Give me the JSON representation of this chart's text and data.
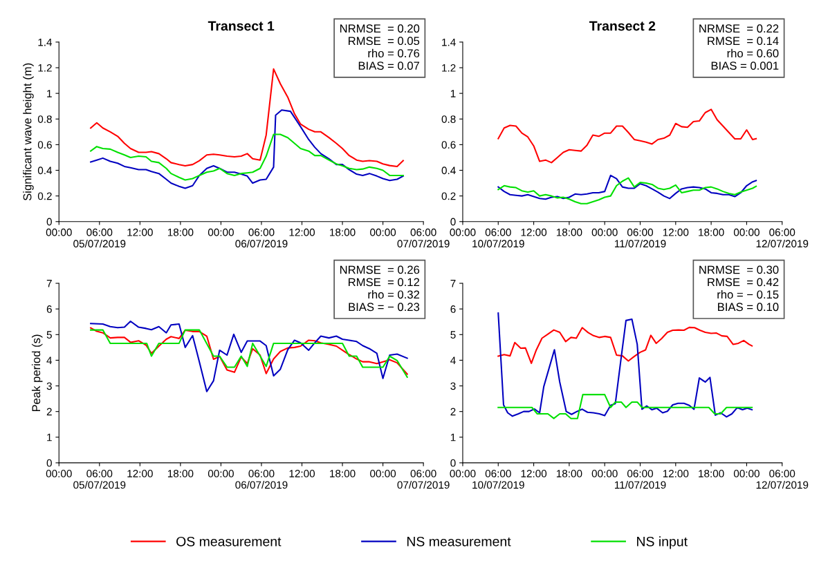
{
  "chart_data": [
    {
      "type": "line",
      "title": "Transect 1",
      "ylabel": "Significant wave height (m)",
      "legend": "bottom",
      "grid": false,
      "x": [
        "2019-07-05T04:42",
        "2019-07-05T05:36",
        "2019-07-05T06:30",
        "2019-07-05T07:36",
        "2019-07-05T08:42",
        "2019-07-05T09:42",
        "2019-07-05T10:36",
        "2019-07-05T11:48",
        "2019-07-05T12:54",
        "2019-07-05T13:42",
        "2019-07-05T14:48",
        "2019-07-05T15:54",
        "2019-07-05T16:36",
        "2019-07-05T17:48",
        "2019-07-05T18:42",
        "2019-07-05T19:48",
        "2019-07-05T20:48",
        "2019-07-05T21:54",
        "2019-07-05T22:54",
        "2019-07-05T23:48",
        "2019-07-06T00:54",
        "2019-07-06T02:00",
        "2019-07-06T03:00",
        "2019-07-06T03:54",
        "2019-07-06T04:42",
        "2019-07-06T05:48",
        "2019-07-06T06:42",
        "2019-07-06T07:48",
        "2019-07-06T08:48",
        "2019-07-06T09:54",
        "2019-07-06T10:54",
        "2019-07-06T11:48",
        "2019-07-06T13:00",
        "2019-07-06T13:54",
        "2019-07-06T14:48",
        "2019-07-06T16:00",
        "2019-07-06T17:06",
        "2019-07-06T18:00",
        "2019-07-06T19:00",
        "2019-07-06T20:06",
        "2019-07-06T21:00",
        "2019-07-06T22:00",
        "2019-07-06T23:06",
        "2019-07-07T00:00",
        "2019-07-07T01:00",
        "2019-07-07T02:06",
        "2019-07-07T03:00"
      ],
      "xlim": [
        "2019-07-05T00:00",
        "2019-07-07T06:00"
      ],
      "xticks": [
        {
          "value": "2019-07-05T00:00",
          "label": "00:00"
        },
        {
          "value": "2019-07-05T06:00",
          "label": "06:00\n05/07/2019"
        },
        {
          "value": "2019-07-05T12:00",
          "label": "12:00"
        },
        {
          "value": "2019-07-05T18:00",
          "label": "18:00"
        },
        {
          "value": "2019-07-06T00:00",
          "label": "00:00"
        },
        {
          "value": "2019-07-06T06:00",
          "label": "06:00\n06/07/2019"
        },
        {
          "value": "2019-07-06T12:00",
          "label": "12:00"
        },
        {
          "value": "2019-07-06T18:00",
          "label": "18:00"
        },
        {
          "value": "2019-07-07T00:00",
          "label": "00:00"
        },
        {
          "value": "2019-07-07T06:00",
          "label": "06:00\n07/07/2019"
        }
      ],
      "ylim": [
        0,
        1.4
      ],
      "yticks": [
        0,
        0.2,
        0.4,
        0.6,
        0.8,
        1,
        1.2,
        1.4
      ],
      "annotations": [
        "NRMSE  = 0.20\nRMSE  = 0.05\nrho = 0.76\nBIAS = 0.07"
      ],
      "series": [
        {
          "name": "OS measurement",
          "color": "#ff0000",
          "values": [
            0.73,
            0.77,
            0.73,
            0.7,
            0.665,
            0.61,
            0.57,
            0.54,
            0.54,
            0.545,
            0.53,
            0.49,
            0.46,
            0.445,
            0.435,
            0.445,
            0.475,
            0.52,
            0.525,
            0.52,
            0.51,
            0.505,
            0.51,
            0.53,
            0.49,
            0.48,
            0.675,
            1.19,
            1.075,
            0.97,
            0.84,
            0.76,
            0.72,
            0.7,
            0.7,
            0.655,
            0.61,
            0.57,
            0.515,
            0.48,
            0.47,
            0.475,
            0.47,
            0.45,
            0.437,
            0.43,
            0.475
          ]
        },
        {
          "name": "NS measurement",
          "color": "#0000c0",
          "x": [
            "2019-07-05T04:42",
            "2019-07-05T05:36",
            "2019-07-05T06:30",
            "2019-07-05T07:36",
            "2019-07-05T08:42",
            "2019-07-05T09:42",
            "2019-07-05T10:36",
            "2019-07-05T11:48",
            "2019-07-05T12:54",
            "2019-07-05T13:42",
            "2019-07-05T14:48",
            "2019-07-05T15:54",
            "2019-07-05T16:36",
            "2019-07-05T17:48",
            "2019-07-05T18:42",
            "2019-07-05T19:48",
            "2019-07-05T20:48",
            "2019-07-05T21:54",
            "2019-07-05T22:54",
            "2019-07-05T23:48",
            "2019-07-06T00:54",
            "2019-07-06T02:00",
            "2019-07-06T03:00",
            "2019-07-06T03:54",
            "2019-07-06T04:42",
            "2019-07-06T05:48",
            "2019-07-06T06:42",
            "2019-07-06T07:48",
            "2019-07-06T08:06",
            "2019-07-06T09:00",
            "2019-07-06T10:18",
            "2019-07-06T11:48",
            "2019-07-06T13:00",
            "2019-07-06T13:54",
            "2019-07-06T14:48",
            "2019-07-06T16:00",
            "2019-07-06T17:06",
            "2019-07-06T18:00",
            "2019-07-06T19:00",
            "2019-07-06T20:06",
            "2019-07-06T21:00",
            "2019-07-06T22:00",
            "2019-07-06T23:06",
            "2019-07-07T00:00",
            "2019-07-07T01:00",
            "2019-07-07T02:06",
            "2019-07-07T03:00"
          ],
          "values": [
            0.465,
            0.48,
            0.495,
            0.47,
            0.455,
            0.43,
            0.42,
            0.405,
            0.405,
            0.39,
            0.375,
            0.33,
            0.3,
            0.275,
            0.26,
            0.28,
            0.36,
            0.415,
            0.435,
            0.415,
            0.385,
            0.385,
            0.37,
            0.355,
            0.3,
            0.325,
            0.33,
            0.425,
            0.83,
            0.87,
            0.86,
            0.74,
            0.64,
            0.58,
            0.53,
            0.49,
            0.445,
            0.445,
            0.405,
            0.37,
            0.36,
            0.375,
            0.355,
            0.335,
            0.32,
            0.33,
            0.355
          ]
        },
        {
          "name": "NS input",
          "color": "#00e000",
          "values": [
            0.55,
            0.585,
            0.57,
            0.565,
            0.54,
            0.52,
            0.5,
            0.51,
            0.505,
            0.47,
            0.46,
            0.415,
            0.375,
            0.345,
            0.325,
            0.335,
            0.36,
            0.385,
            0.395,
            0.415,
            0.375,
            0.36,
            0.375,
            0.38,
            0.385,
            0.415,
            0.51,
            0.68,
            0.68,
            0.655,
            0.61,
            0.57,
            0.55,
            0.515,
            0.515,
            0.48,
            0.45,
            0.435,
            0.415,
            0.405,
            0.41,
            0.425,
            0.415,
            0.4,
            0.36,
            0.36,
            0.36
          ]
        }
      ]
    },
    {
      "type": "line",
      "title": "Transect 2",
      "grid": false,
      "x": [
        "2019-07-10T06:00",
        "2019-07-10T07:00",
        "2019-07-10T08:00",
        "2019-07-10T09:00",
        "2019-07-10T10:00",
        "2019-07-10T11:00",
        "2019-07-10T12:00",
        "2019-07-10T13:00",
        "2019-07-10T14:00",
        "2019-07-10T15:00",
        "2019-07-10T16:00",
        "2019-07-10T17:00",
        "2019-07-10T18:00",
        "2019-07-10T19:00",
        "2019-07-10T20:00",
        "2019-07-10T21:00",
        "2019-07-10T22:00",
        "2019-07-10T23:00",
        "2019-07-11T00:00",
        "2019-07-11T01:00",
        "2019-07-11T02:00",
        "2019-07-11T03:00",
        "2019-07-11T04:00",
        "2019-07-11T05:00",
        "2019-07-11T06:00",
        "2019-07-11T07:00",
        "2019-07-11T08:00",
        "2019-07-11T09:00",
        "2019-07-11T10:00",
        "2019-07-11T11:00",
        "2019-07-11T12:00",
        "2019-07-11T13:00",
        "2019-07-11T14:00",
        "2019-07-11T15:00",
        "2019-07-11T16:00",
        "2019-07-11T17:00",
        "2019-07-11T18:00",
        "2019-07-11T19:00",
        "2019-07-11T20:00",
        "2019-07-11T21:00",
        "2019-07-11T22:00",
        "2019-07-11T23:00",
        "2019-07-12T00:00",
        "2019-07-12T01:00",
        "2019-07-12T01:36"
      ],
      "xlim": [
        "2019-07-10T00:00",
        "2019-07-12T06:00"
      ],
      "xticks": [
        {
          "value": "2019-07-10T00:00",
          "label": "00:00"
        },
        {
          "value": "2019-07-10T06:00",
          "label": "06:00\n10/07/2019"
        },
        {
          "value": "2019-07-10T12:00",
          "label": "12:00"
        },
        {
          "value": "2019-07-10T18:00",
          "label": "18:00"
        },
        {
          "value": "2019-07-11T00:00",
          "label": "00:00"
        },
        {
          "value": "2019-07-11T06:00",
          "label": "06:00\n11/07/2019"
        },
        {
          "value": "2019-07-11T12:00",
          "label": "12:00"
        },
        {
          "value": "2019-07-11T18:00",
          "label": "18:00"
        },
        {
          "value": "2019-07-12T00:00",
          "label": "00:00"
        },
        {
          "value": "2019-07-12T06:00",
          "label": "06:00\n12/07/2019"
        }
      ],
      "ylim": [
        0,
        1.4
      ],
      "yticks": [
        0,
        0.2,
        0.4,
        0.6,
        0.8,
        1,
        1.2,
        1.4
      ],
      "annotations": [
        "NRMSE  = 0.22\nRMSE  = 0.14\nrho = 0.60\nBIAS = 0.001"
      ],
      "series": [
        {
          "color": "#ff0000",
          "values": [
            0.647,
            0.73,
            0.75,
            0.745,
            0.69,
            0.66,
            0.59,
            0.47,
            0.48,
            0.46,
            0.5,
            0.54,
            0.56,
            0.555,
            0.55,
            0.595,
            0.675,
            0.665,
            0.69,
            0.69,
            0.745,
            0.745,
            0.695,
            0.64,
            0.63,
            0.62,
            0.605,
            0.64,
            0.65,
            0.675,
            0.765,
            0.74,
            0.735,
            0.78,
            0.785,
            0.85,
            0.875,
            0.795,
            0.745,
            0.695,
            0.645,
            0.645,
            0.715,
            0.64,
            0.647
          ]
        },
        {
          "color": "#0000c0",
          "values": [
            0.27,
            0.235,
            0.21,
            0.205,
            0.2,
            0.21,
            0.195,
            0.18,
            0.175,
            0.19,
            0.195,
            0.18,
            0.19,
            0.215,
            0.21,
            0.215,
            0.225,
            0.225,
            0.235,
            0.36,
            0.335,
            0.27,
            0.26,
            0.26,
            0.295,
            0.28,
            0.255,
            0.23,
            0.2,
            0.18,
            0.22,
            0.255,
            0.265,
            0.27,
            0.265,
            0.255,
            0.225,
            0.22,
            0.21,
            0.21,
            0.195,
            0.225,
            0.28,
            0.31,
            0.32
          ]
        },
        {
          "color": "#00e000",
          "values": [
            0.25,
            0.28,
            0.27,
            0.265,
            0.24,
            0.23,
            0.24,
            0.2,
            0.21,
            0.2,
            0.185,
            0.19,
            0.175,
            0.155,
            0.14,
            0.14,
            0.155,
            0.17,
            0.19,
            0.2,
            0.28,
            0.315,
            0.34,
            0.27,
            0.305,
            0.3,
            0.29,
            0.26,
            0.25,
            0.26,
            0.285,
            0.225,
            0.235,
            0.245,
            0.245,
            0.265,
            0.27,
            0.255,
            0.235,
            0.22,
            0.21,
            0.23,
            0.245,
            0.26,
            0.275
          ]
        }
      ]
    },
    {
      "type": "line",
      "ylabel": "Peak period (s)",
      "grid": false,
      "xlim": [
        "2019-07-05T00:00",
        "2019-07-07T06:00"
      ],
      "xticks": [
        {
          "value": "2019-07-05T00:00",
          "label": "00:00"
        },
        {
          "value": "2019-07-05T06:00",
          "label": "06:00\n05/07/2019"
        },
        {
          "value": "2019-07-05T12:00",
          "label": "12:00"
        },
        {
          "value": "2019-07-05T18:00",
          "label": "18:00"
        },
        {
          "value": "2019-07-06T00:00",
          "label": "00:00"
        },
        {
          "value": "2019-07-06T06:00",
          "label": "06:00\n06/07/2019"
        },
        {
          "value": "2019-07-06T12:00",
          "label": "12:00"
        },
        {
          "value": "2019-07-06T18:00",
          "label": "18:00"
        },
        {
          "value": "2019-07-07T00:00",
          "label": "00:00"
        },
        {
          "value": "2019-07-07T06:00",
          "label": "06:00\n07/07/2019"
        }
      ],
      "ylim": [
        0,
        7
      ],
      "yticks": [
        0,
        1,
        2,
        3,
        4,
        5,
        6,
        7
      ],
      "annotations": [
        "NRMSE  = 0.26\nRMSE  = 0.12\nrho = 0.32\nBIAS = − 0.23"
      ],
      "series": [
        {
          "color": "#ff0000",
          "x": [
            "2019-07-05T04:42",
            "2019-07-05T05:36",
            "2019-07-05T06:30",
            "2019-07-05T07:36",
            "2019-07-05T08:42",
            "2019-07-05T09:42",
            "2019-07-05T10:36",
            "2019-07-05T11:48",
            "2019-07-05T12:54",
            "2019-07-05T13:42",
            "2019-07-05T14:48",
            "2019-07-05T15:54",
            "2019-07-05T16:36",
            "2019-07-05T17:48",
            "2019-07-05T18:42",
            "2019-07-05T19:48",
            "2019-07-05T20:48",
            "2019-07-05T21:54",
            "2019-07-05T22:54",
            "2019-07-05T23:48",
            "2019-07-06T00:54",
            "2019-07-06T02:00",
            "2019-07-06T03:00",
            "2019-07-06T03:54",
            "2019-07-06T04:42",
            "2019-07-06T05:48",
            "2019-07-06T06:42",
            "2019-07-06T07:48",
            "2019-07-06T08:48",
            "2019-07-06T09:54",
            "2019-07-06T10:54",
            "2019-07-06T11:48",
            "2019-07-06T13:00",
            "2019-07-06T13:54",
            "2019-07-06T14:48",
            "2019-07-06T16:00",
            "2019-07-06T17:06",
            "2019-07-06T18:00",
            "2019-07-06T19:00",
            "2019-07-06T20:06",
            "2019-07-06T21:00",
            "2019-07-06T22:00",
            "2019-07-06T23:06",
            "2019-07-07T00:00",
            "2019-07-07T01:00",
            "2019-07-07T02:06",
            "2019-07-07T03:36"
          ],
          "values": [
            5.26,
            5.13,
            5.07,
            4.87,
            4.89,
            4.89,
            4.7,
            4.76,
            4.59,
            4.27,
            4.55,
            4.82,
            4.92,
            4.85,
            5.17,
            5.12,
            5.12,
            4.94,
            4.04,
            4.15,
            3.62,
            3.53,
            4.13,
            3.87,
            4.45,
            4.2,
            3.48,
            4.05,
            4.34,
            4.48,
            4.5,
            4.55,
            4.78,
            4.76,
            4.68,
            4.62,
            4.55,
            4.39,
            4.22,
            4.05,
            3.94,
            3.94,
            3.87,
            3.94,
            4.02,
            3.9,
            3.46
          ]
        },
        {
          "color": "#0000c0",
          "x": [
            "2019-07-05T04:42",
            "2019-07-05T06:30",
            "2019-07-05T07:36",
            "2019-07-05T08:42",
            "2019-07-05T09:42",
            "2019-07-05T10:36",
            "2019-07-05T11:48",
            "2019-07-05T12:54",
            "2019-07-05T13:42",
            "2019-07-05T14:48",
            "2019-07-05T15:54",
            "2019-07-05T16:36",
            "2019-07-05T17:48",
            "2019-07-05T18:42",
            "2019-07-05T19:48",
            "2019-07-05T20:48",
            "2019-07-05T21:54",
            "2019-07-05T22:54",
            "2019-07-05T23:48",
            "2019-07-06T00:54",
            "2019-07-06T01:54",
            "2019-07-06T03:00",
            "2019-07-06T03:54",
            "2019-07-06T05:48",
            "2019-07-06T06:42",
            "2019-07-06T07:48",
            "2019-07-06T08:48",
            "2019-07-06T09:54",
            "2019-07-06T10:54",
            "2019-07-06T11:48",
            "2019-07-06T13:00",
            "2019-07-06T13:54",
            "2019-07-06T14:48",
            "2019-07-06T16:00",
            "2019-07-06T17:06",
            "2019-07-06T18:00",
            "2019-07-06T19:00",
            "2019-07-06T20:06",
            "2019-07-06T21:00",
            "2019-07-06T22:00",
            "2019-07-06T23:06",
            "2019-07-07T00:00",
            "2019-07-07T01:00",
            "2019-07-07T02:06",
            "2019-07-07T03:36"
          ],
          "values": [
            5.43,
            5.41,
            5.31,
            5.27,
            5.29,
            5.52,
            5.29,
            5.24,
            5.19,
            5.31,
            5.07,
            5.38,
            5.41,
            4.5,
            4.96,
            3.94,
            2.78,
            3.2,
            4.39,
            4.2,
            5.01,
            4.31,
            4.75,
            4.75,
            4.57,
            3.39,
            3.65,
            4.41,
            4.78,
            4.68,
            4.39,
            4.68,
            4.94,
            4.87,
            4.94,
            4.82,
            4.78,
            4.73,
            4.57,
            4.45,
            4.27,
            3.29,
            4.2,
            4.24,
            4.08
          ]
        },
        {
          "color": "#00e000",
          "x": [
            "2019-07-05T04:42",
            "2019-07-05T06:30",
            "2019-07-05T07:36",
            "2019-07-05T13:00",
            "2019-07-05T13:42",
            "2019-07-05T14:48",
            "2019-07-05T17:48",
            "2019-07-05T18:42",
            "2019-07-05T20:48",
            "2019-07-05T22:54",
            "2019-07-05T23:48",
            "2019-07-06T00:54",
            "2019-07-06T02:00",
            "2019-07-06T03:00",
            "2019-07-06T03:54",
            "2019-07-06T04:42",
            "2019-07-06T06:42",
            "2019-07-06T07:48",
            "2019-07-06T13:54",
            "2019-07-06T18:00",
            "2019-07-06T19:00",
            "2019-07-06T20:06",
            "2019-07-06T21:00",
            "2019-07-07T00:00",
            "2019-07-07T01:00",
            "2019-07-07T02:06",
            "2019-07-07T03:36"
          ],
          "values": [
            5.18,
            5.18,
            4.66,
            4.66,
            4.16,
            4.66,
            4.66,
            5.18,
            5.18,
            4.16,
            4.16,
            3.73,
            3.73,
            4.16,
            3.76,
            4.66,
            3.76,
            4.66,
            4.66,
            4.66,
            4.16,
            4.16,
            3.73,
            3.73,
            4.16,
            3.99,
            3.34
          ]
        }
      ]
    },
    {
      "type": "line",
      "grid": false,
      "xlim": [
        "2019-07-10T00:00",
        "2019-07-12T06:00"
      ],
      "xticks": [
        {
          "value": "2019-07-10T00:00",
          "label": "00:00"
        },
        {
          "value": "2019-07-10T06:00",
          "label": "06:00\n10/07/2019"
        },
        {
          "value": "2019-07-10T12:00",
          "label": "12:00"
        },
        {
          "value": "2019-07-10T18:00",
          "label": "18:00"
        },
        {
          "value": "2019-07-11T00:00",
          "label": "00:00"
        },
        {
          "value": "2019-07-11T06:00",
          "label": "06:00\n11/07/2019"
        },
        {
          "value": "2019-07-11T12:00",
          "label": "12:00"
        },
        {
          "value": "2019-07-11T18:00",
          "label": "18:00"
        },
        {
          "value": "2019-07-12T00:00",
          "label": "00:00"
        },
        {
          "value": "2019-07-12T06:00",
          "label": "06:00\n12/07/2019"
        }
      ],
      "ylim": [
        0,
        7
      ],
      "yticks": [
        0,
        1,
        2,
        3,
        4,
        5,
        6,
        7
      ],
      "annotations": [
        "NRMSE  = 0.30\nRMSE  = 0.42\nrho = − 0.15\nBIAS = 0.10"
      ],
      "series": [
        {
          "color": "#ff0000",
          "x": [
            "2019-07-10T06:00",
            "2019-07-10T07:00",
            "2019-07-10T08:00",
            "2019-07-10T08:48",
            "2019-07-10T09:48",
            "2019-07-10T10:36",
            "2019-07-10T11:36",
            "2019-07-10T12:24",
            "2019-07-10T13:24",
            "2019-07-10T14:24",
            "2019-07-10T15:24",
            "2019-07-10T16:24",
            "2019-07-10T17:24",
            "2019-07-10T18:18",
            "2019-07-10T19:12",
            "2019-07-10T20:12",
            "2019-07-10T21:12",
            "2019-07-10T22:06",
            "2019-07-10T23:06",
            "2019-07-11T00:00",
            "2019-07-11T01:00",
            "2019-07-11T02:00",
            "2019-07-11T03:00",
            "2019-07-11T04:00",
            "2019-07-11T05:00",
            "2019-07-11T06:00",
            "2019-07-11T06:54",
            "2019-07-11T07:48",
            "2019-07-11T08:42",
            "2019-07-11T09:36",
            "2019-07-11T10:36",
            "2019-07-11T11:30",
            "2019-07-11T12:30",
            "2019-07-11T13:24",
            "2019-07-11T14:18",
            "2019-07-11T15:12",
            "2019-07-11T16:06",
            "2019-07-11T17:00",
            "2019-07-11T18:00",
            "2019-07-11T18:54",
            "2019-07-11T19:48",
            "2019-07-11T20:42",
            "2019-07-11T21:42",
            "2019-07-11T22:36",
            "2019-07-11T23:30",
            "2019-07-12T00:24",
            "2019-07-12T00:54"
          ],
          "values": [
            4.16,
            4.22,
            4.17,
            4.69,
            4.47,
            4.48,
            3.88,
            4.38,
            4.86,
            5.02,
            5.18,
            5.09,
            4.73,
            4.89,
            4.86,
            5.27,
            5.08,
            4.96,
            4.89,
            4.93,
            4.89,
            4.2,
            4.17,
            3.97,
            4.15,
            4.31,
            4.4,
            4.97,
            4.66,
            4.84,
            5.09,
            5.17,
            5.18,
            5.17,
            5.28,
            5.27,
            5.17,
            5.09,
            5.05,
            5.06,
            4.95,
            4.93,
            4.62,
            4.66,
            4.77,
            4.62,
            4.56
          ]
        },
        {
          "color": "#0000c0",
          "x": [
            "2019-07-10T06:00",
            "2019-07-10T06:54",
            "2019-07-10T07:36",
            "2019-07-10T08:24",
            "2019-07-10T09:24",
            "2019-07-10T10:18",
            "2019-07-10T11:12",
            "2019-07-10T12:06",
            "2019-07-10T13:00",
            "2019-07-10T13:42",
            "2019-07-10T15:30",
            "2019-07-10T16:24",
            "2019-07-10T17:30",
            "2019-07-10T18:24",
            "2019-07-10T19:18",
            "2019-07-10T20:12",
            "2019-07-10T21:06",
            "2019-07-10T22:06",
            "2019-07-10T23:06",
            "2019-07-11T00:00",
            "2019-07-11T01:00",
            "2019-07-11T01:48",
            "2019-07-11T02:42",
            "2019-07-11T03:36",
            "2019-07-11T04:36",
            "2019-07-11T05:30",
            "2019-07-11T06:18",
            "2019-07-11T07:06",
            "2019-07-11T08:00",
            "2019-07-11T08:48",
            "2019-07-11T09:48",
            "2019-07-11T10:36",
            "2019-07-11T11:30",
            "2019-07-11T12:24",
            "2019-07-11T13:24",
            "2019-07-11T14:18",
            "2019-07-11T15:06",
            "2019-07-11T16:00",
            "2019-07-11T17:00",
            "2019-07-11T17:48",
            "2019-07-11T18:42",
            "2019-07-11T19:36",
            "2019-07-11T20:36",
            "2019-07-11T21:30",
            "2019-07-11T22:24",
            "2019-07-11T23:18",
            "2019-07-12T00:06",
            "2019-07-12T00:54"
          ],
          "values": [
            5.84,
            2.26,
            1.95,
            1.82,
            1.91,
            2.0,
            2.0,
            2.1,
            1.95,
            2.97,
            4.41,
            3.15,
            2.0,
            1.89,
            2.0,
            2.09,
            1.97,
            1.95,
            1.91,
            1.84,
            2.24,
            2.31,
            3.95,
            5.55,
            5.6,
            4.62,
            2.09,
            2.22,
            2.07,
            2.13,
            1.95,
            2.01,
            2.26,
            2.32,
            2.32,
            2.24,
            2.09,
            3.31,
            3.15,
            3.33,
            1.86,
            1.95,
            1.79,
            1.91,
            2.15,
            2.07,
            2.13,
            2.07
          ]
        },
        {
          "color": "#00e000",
          "x": [
            "2019-07-10T06:00",
            "2019-07-10T11:42",
            "2019-07-10T12:36",
            "2019-07-10T14:24",
            "2019-07-10T15:24",
            "2019-07-10T16:24",
            "2019-07-10T17:24",
            "2019-07-10T18:18",
            "2019-07-10T19:24",
            "2019-07-10T20:18",
            "2019-07-11T00:00",
            "2019-07-11T01:00",
            "2019-07-11T01:48",
            "2019-07-11T02:48",
            "2019-07-11T03:36",
            "2019-07-11T04:36",
            "2019-07-11T05:30",
            "2019-07-11T06:18",
            "2019-07-11T17:36",
            "2019-07-11T18:36",
            "2019-07-11T19:36",
            "2019-07-11T20:36",
            "2019-07-12T00:54"
          ],
          "values": [
            2.16,
            2.16,
            1.91,
            1.91,
            1.73,
            1.91,
            1.91,
            1.73,
            1.73,
            2.66,
            2.66,
            2.16,
            2.37,
            2.37,
            2.16,
            2.37,
            2.37,
            2.16,
            2.16,
            1.91,
            1.91,
            2.16,
            2.16
          ]
        }
      ]
    }
  ]
}
